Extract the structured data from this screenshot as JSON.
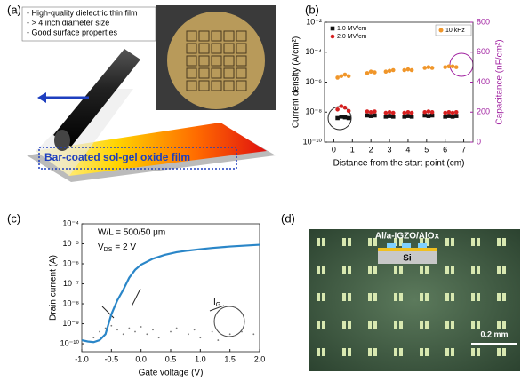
{
  "panel_labels": [
    "(a)",
    "(b)",
    "(c)",
    "(d)"
  ],
  "panel_a": {
    "bullets": [
      "- High-quality dielectric thin film",
      "- > 4 inch diameter size",
      "- Good surface properties"
    ],
    "film_label": "Bar-coated sol-gel oxide film"
  },
  "chart_data": [
    {
      "type": "scatter",
      "log_y": true,
      "legend": "upper left",
      "xlabel": "Distance from the start point (cm)",
      "ylabel": "Current density (A/cm²)",
      "y2label": "Capacitance (nF/cm²)",
      "xlim": [
        -0.5,
        7.5
      ],
      "xticks": [
        0,
        1,
        2,
        3,
        4,
        5,
        6,
        7
      ],
      "ylim": [
        1e-10,
        0.01
      ],
      "yticks": [
        {
          "value": 1e-10,
          "label": "10⁻¹⁰"
        },
        {
          "value": 1e-08,
          "label": "10⁻⁸"
        },
        {
          "value": 1e-06,
          "label": "10⁻⁶"
        },
        {
          "value": 0.0001,
          "label": "10⁻⁴"
        },
        {
          "value": 0.01,
          "label": "10⁻²"
        }
      ],
      "y2lim": [
        0,
        800
      ],
      "y2ticks": [
        0,
        200,
        400,
        600,
        800
      ],
      "x": [
        0.2,
        0.4,
        0.6,
        0.8,
        1.8,
        2.0,
        2.2,
        2.8,
        3.0,
        3.2,
        3.8,
        4.0,
        4.2,
        4.9,
        5.1,
        5.3,
        6.0,
        6.2,
        6.4,
        6.6
      ],
      "series": [
        {
          "name": "1.0 MV/cm",
          "color": "#111111",
          "marker": "square",
          "values": [
            4e-09,
            5e-09,
            4.5e-09,
            4e-09,
            6e-09,
            5.5e-09,
            6e-09,
            5e-09,
            5.5e-09,
            5e-09,
            5e-09,
            5.5e-09,
            5e-09,
            6e-09,
            5.5e-09,
            6e-09,
            5e-09,
            5.5e-09,
            5e-09,
            5.5e-09
          ]
        },
        {
          "name": "2.0 MV/cm",
          "color": "#d62020",
          "marker": "circle",
          "values": [
            1.5e-08,
            2.5e-08,
            2e-08,
            1.2e-08,
            1.1e-08,
            1e-08,
            1.1e-08,
            9e-09,
            1e-08,
            9e-09,
            9e-09,
            1e-08,
            9e-09,
            1e-08,
            1.1e-08,
            1e-08,
            9e-09,
            1e-08,
            9e-09,
            1e-08
          ]
        },
        {
          "name": "10 kHz",
          "color": "#f0962a",
          "marker": "circle",
          "axis": "y2",
          "values": [
            430,
            440,
            450,
            440,
            460,
            470,
            465,
            470,
            475,
            480,
            480,
            485,
            480,
            495,
            500,
            495,
            500,
            505,
            505,
            500
          ]
        }
      ]
    },
    {
      "type": "line",
      "log_y": true,
      "xlabel": "Gate voltage (V)",
      "ylabel": "Drain current (A)",
      "xlim": [
        -1.0,
        2.0
      ],
      "xticks": [
        {
          "value": -1,
          "label": "-1.0"
        },
        {
          "value": -0.5,
          "label": "-0.5"
        },
        {
          "value": 0,
          "label": "0.0"
        },
        {
          "value": 0.5,
          "label": "0.5"
        },
        {
          "value": 1,
          "label": "1.0"
        },
        {
          "value": 1.5,
          "label": "1.5"
        },
        {
          "value": 2,
          "label": "2.0"
        }
      ],
      "ylim": [
        4e-11,
        0.0001
      ],
      "yticks": [
        {
          "value": 1e-10,
          "label": "10⁻¹⁰"
        },
        {
          "value": 1e-09,
          "label": "10⁻⁹"
        },
        {
          "value": 1e-08,
          "label": "10⁻⁸"
        },
        {
          "value": 1e-07,
          "label": "10⁻⁷"
        },
        {
          "value": 1e-06,
          "label": "10⁻⁶"
        },
        {
          "value": 1e-05,
          "label": "10⁻⁵"
        },
        {
          "value": 0.0001,
          "label": "10⁻⁴"
        }
      ],
      "annotations": {
        "wl": "W/L = 500/50 μm",
        "vds": {
          "main": "V",
          "sub": "DS",
          "rest": "= 2 V"
        },
        "ig": {
          "main": "I",
          "sub": "G"
        }
      },
      "series": [
        {
          "color": "#2a86c8",
          "x": [
            -1.0,
            -0.9,
            -0.8,
            -0.7,
            -0.6,
            -0.5,
            -0.4,
            -0.3,
            -0.2,
            -0.1,
            0,
            0.2,
            0.4,
            0.6,
            0.8,
            1.0,
            1.2,
            1.5,
            2.0
          ],
          "values": [
            1.5e-10,
            1.3e-10,
            1.2e-10,
            1.5e-10,
            3e-10,
            3e-09,
            1.5e-08,
            5e-08,
            2e-07,
            5e-07,
            9e-07,
            1.8e-06,
            2.8e-06,
            3.8e-06,
            4.6e-06,
            5.4e-06,
            6.2e-06,
            7.3e-06,
            9e-06
          ]
        },
        {
          "color": "#777777",
          "marker": "dot",
          "x": [
            -0.8,
            -0.7,
            -0.6,
            -0.5,
            -0.4,
            -0.3,
            -0.2,
            -0.1,
            0,
            0.1,
            0.2,
            0.3,
            0.5,
            0.6,
            0.8,
            0.9,
            1.0,
            1.2,
            1.3,
            1.5,
            1.7,
            1.9
          ],
          "values": [
            2e-10,
            4e-10,
            6e-10,
            8e-10,
            5e-10,
            3e-10,
            6e-10,
            4e-10,
            7e-10,
            3e-10,
            5e-10,
            2e-10,
            4e-10,
            6e-10,
            3e-10,
            5e-10,
            2e-10,
            4e-10,
            1.5e-10,
            3e-10,
            4e-10,
            3e-10
          ]
        }
      ]
    }
  ],
  "panel_d": {
    "stack_label": "Al/a-IGZO/AlOx",
    "substrate": "Si",
    "scale_bar": "0.2 mm"
  }
}
